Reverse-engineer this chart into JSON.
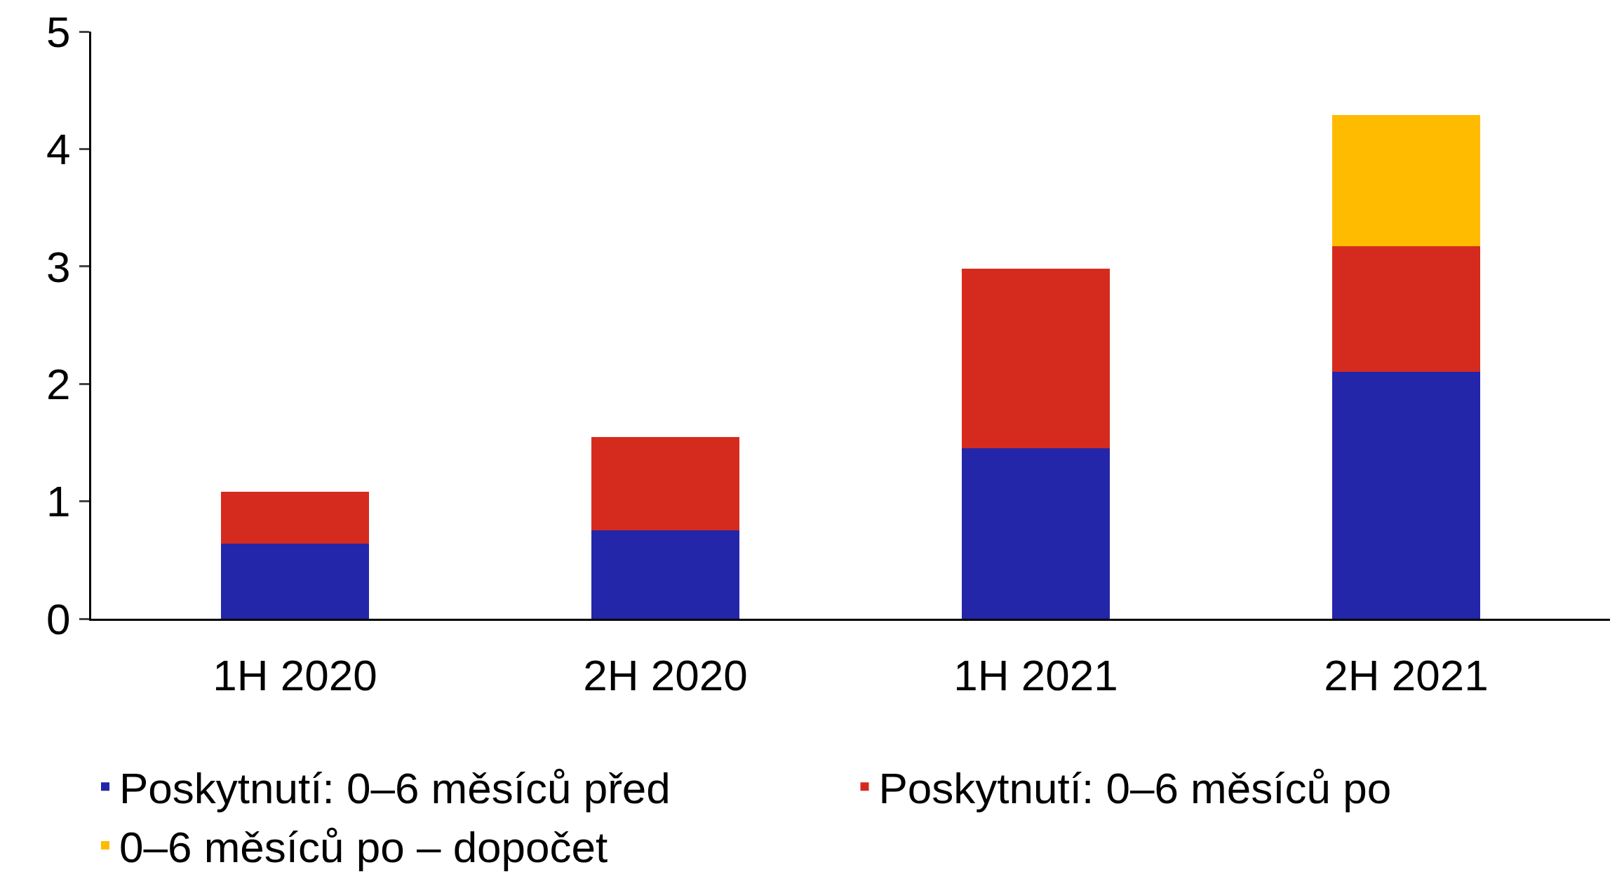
{
  "chart_data": {
    "type": "bar",
    "stacked": true,
    "categories": [
      "1H 2020",
      "2H 2020",
      "1H 2021",
      "2H 2021"
    ],
    "series": [
      {
        "name": "Poskytnutí: 0–6 měsíců před",
        "color": "#2326a8",
        "values": [
          0.64,
          0.75,
          1.45,
          2.1
        ]
      },
      {
        "name": "Poskytnutí: 0–6 měsíců po",
        "color": "#d52b1e",
        "values": [
          0.44,
          0.8,
          1.53,
          1.07
        ]
      },
      {
        "name": "0–6 měsíců po – dopočet",
        "color": "#ffbb00",
        "values": [
          null,
          null,
          null,
          1.12
        ]
      }
    ],
    "ylim": [
      0,
      5
    ],
    "yticks": [
      0,
      1,
      2,
      3,
      4,
      5
    ],
    "legend": "bottom"
  }
}
